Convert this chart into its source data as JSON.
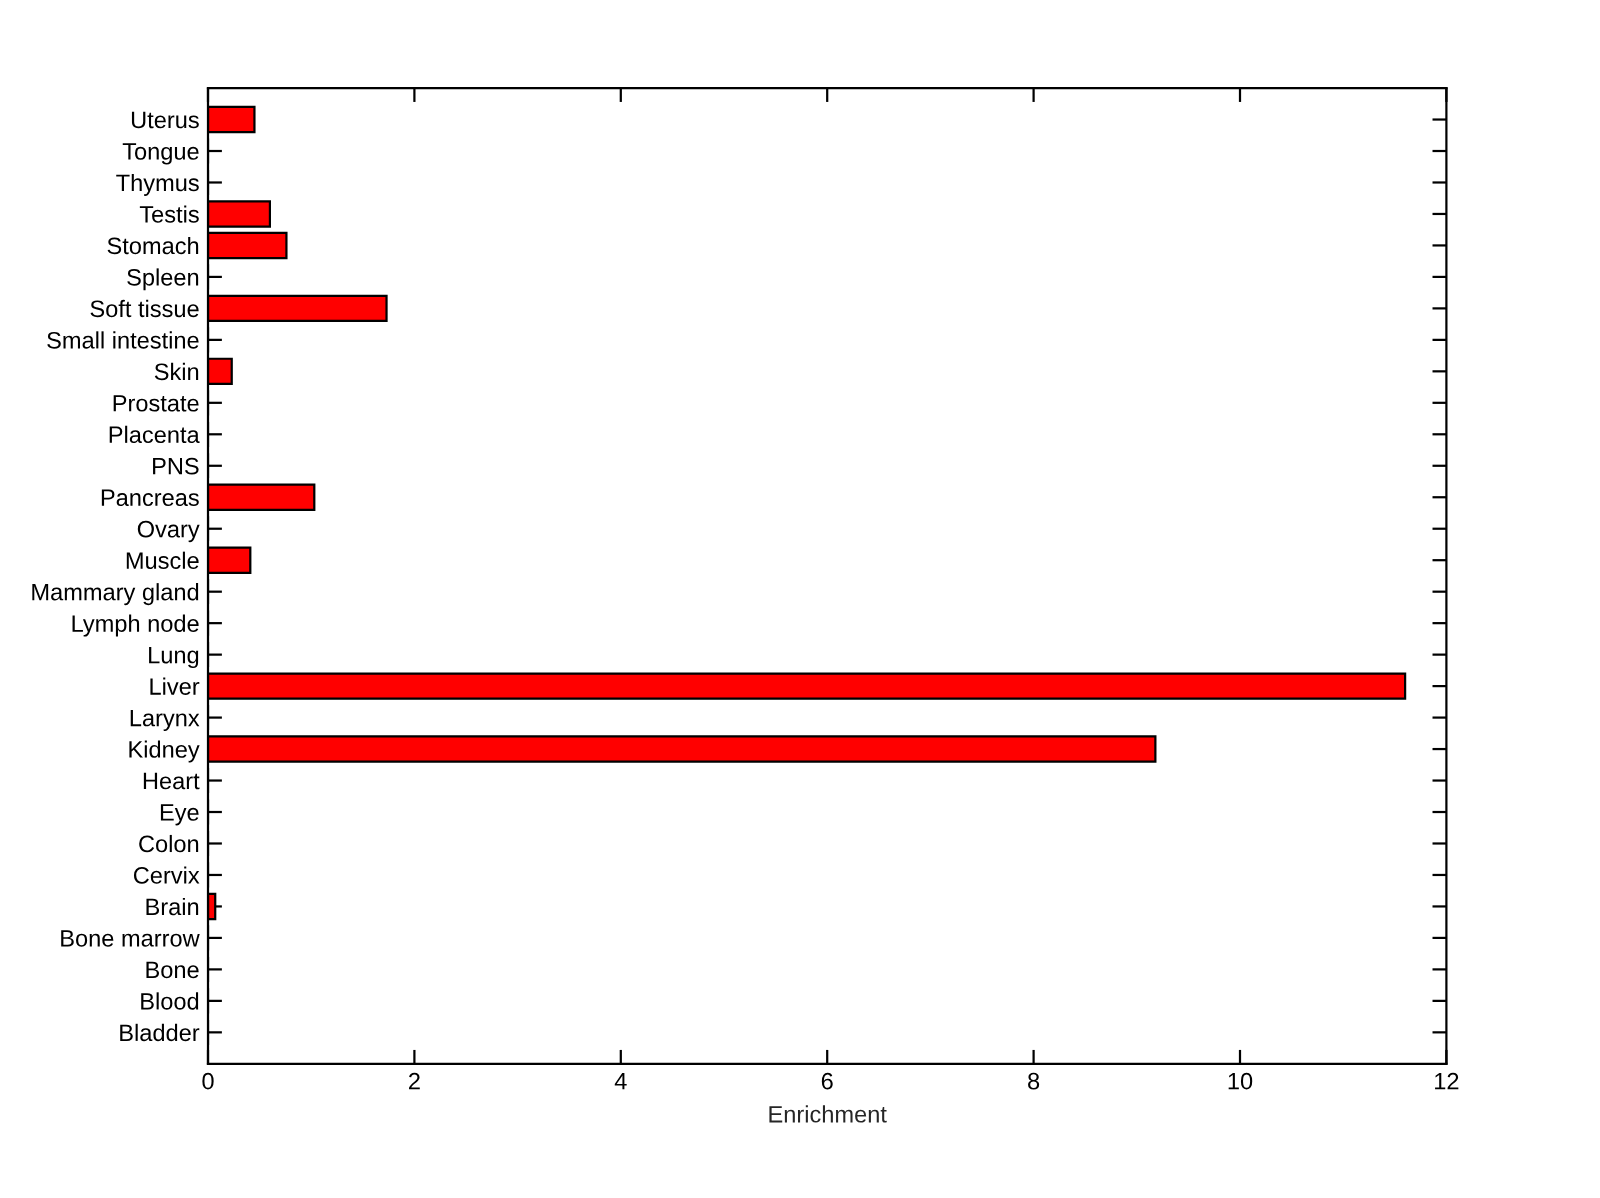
{
  "chart_data": {
    "type": "bar",
    "orientation": "horizontal",
    "xlabel": "Enrichment",
    "categories": [
      "Uterus",
      "Tongue",
      "Thymus",
      "Testis",
      "Stomach",
      "Spleen",
      "Soft tissue",
      "Small intestine",
      "Skin",
      "Prostate",
      "Placenta",
      "PNS",
      "Pancreas",
      "Ovary",
      "Muscle",
      "Mammary gland",
      "Lymph node",
      "Lung",
      "Liver",
      "Larynx",
      "Kidney",
      "Heart",
      "Eye",
      "Colon",
      "Cervix",
      "Brain",
      "Bone marrow",
      "Bone",
      "Blood",
      "Bladder"
    ],
    "values": [
      0.45,
      0,
      0,
      0.6,
      0.76,
      0,
      1.73,
      0,
      0.23,
      0,
      0,
      0,
      1.03,
      0,
      0.41,
      0,
      0,
      0,
      11.6,
      0,
      9.18,
      0,
      0,
      0,
      0,
      0.07,
      0,
      0,
      0,
      0
    ],
    "color": "#ff0000",
    "xlim": [
      0,
      12
    ],
    "xticks": [
      0,
      2,
      4,
      6,
      8,
      10,
      12
    ]
  }
}
